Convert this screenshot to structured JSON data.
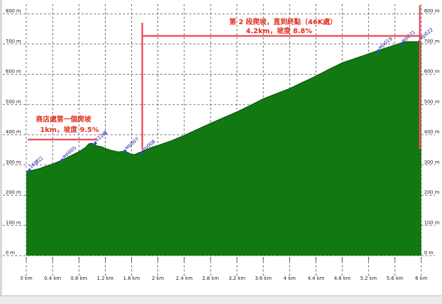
{
  "chart_data": {
    "type": "area",
    "title": "",
    "xlabel": "",
    "ylabel": "",
    "xlim": [
      0,
      6
    ],
    "ylim": [
      0,
      800
    ],
    "x_ticks": [
      0,
      0.4,
      0.8,
      1.2,
      1.6,
      2,
      2.4,
      2.8,
      3.2,
      3.6,
      4,
      4.4,
      4.8,
      5.2,
      5.6,
      6
    ],
    "x_tick_labels": [
      "0 km",
      "0.4 km",
      "0.8 km",
      "1.2 km",
      "1.6 km",
      "2 km",
      "2.4 km",
      "2.8 km",
      "3.2 km",
      "3.6 km",
      "4 km",
      "4.4 km",
      "4.8 km",
      "5.2 km",
      "5.6 km",
      "6 km"
    ],
    "y_ticks": [
      0,
      100,
      200,
      300,
      400,
      500,
      600,
      700,
      800
    ],
    "y_tick_labels": [
      "0 m",
      "100 m",
      "200 m",
      "300 m",
      "400 m",
      "500 m",
      "600 m",
      "700 m",
      "800 m"
    ],
    "grid": true,
    "fill_color": "#127812",
    "series": [
      {
        "x": [
          0,
          0.1,
          0.2,
          0.3,
          0.4,
          0.5,
          0.6,
          0.7,
          0.8,
          0.9,
          0.95,
          1.0,
          1.05,
          1.1,
          1.15,
          1.2,
          1.3,
          1.4,
          1.5,
          1.6,
          1.65,
          1.7,
          1.8,
          1.9,
          2.0,
          2.2,
          2.4,
          2.6,
          2.8,
          3.0,
          3.2,
          3.4,
          3.6,
          3.8,
          4.0,
          4.2,
          4.4,
          4.6,
          4.8,
          5.0,
          5.2,
          5.4,
          5.6,
          5.75,
          6.0
        ],
        "y": [
          278,
          283,
          288,
          296,
          303,
          312,
          322,
          333,
          344,
          358,
          370,
          372,
          365,
          362,
          360,
          355,
          348,
          343,
          346,
          335,
          335,
          340,
          348,
          358,
          365,
          380,
          398,
          418,
          438,
          457,
          476,
          497,
          519,
          536,
          553,
          574,
          594,
          617,
          638,
          653,
          668,
          683,
          697,
          708,
          708
        ]
      }
    ],
    "waypoints": [
      {
        "label": "16號口",
        "x": 0.05,
        "y": 283
      },
      {
        "label": "wp005",
        "x": 0.55,
        "y": 317
      },
      {
        "label": "612峰",
        "x": 1.05,
        "y": 372
      },
      {
        "label": "wp007",
        "x": 1.5,
        "y": 346
      },
      {
        "label": "wp008",
        "x": 1.75,
        "y": 338
      },
      {
        "label": "wp019",
        "x": 5.35,
        "y": 678
      },
      {
        "label": "wp021",
        "x": 5.7,
        "y": 700
      },
      {
        "label": "wp022",
        "x": 5.97,
        "y": 708
      }
    ]
  },
  "annotations": {
    "note1_line1": "商店處第一個爬坡",
    "note1_line2": "1km，坡度 9.5%",
    "note2_line1": "第 2 段爬坡，直到終點（46K處）",
    "note2_line2": "4.2km，坡度 8.8%"
  },
  "colors": {
    "annotation": "#e0301e",
    "marker_line": "#f05060",
    "terrain": "#127812",
    "waypoint": "#2a4fd6"
  }
}
